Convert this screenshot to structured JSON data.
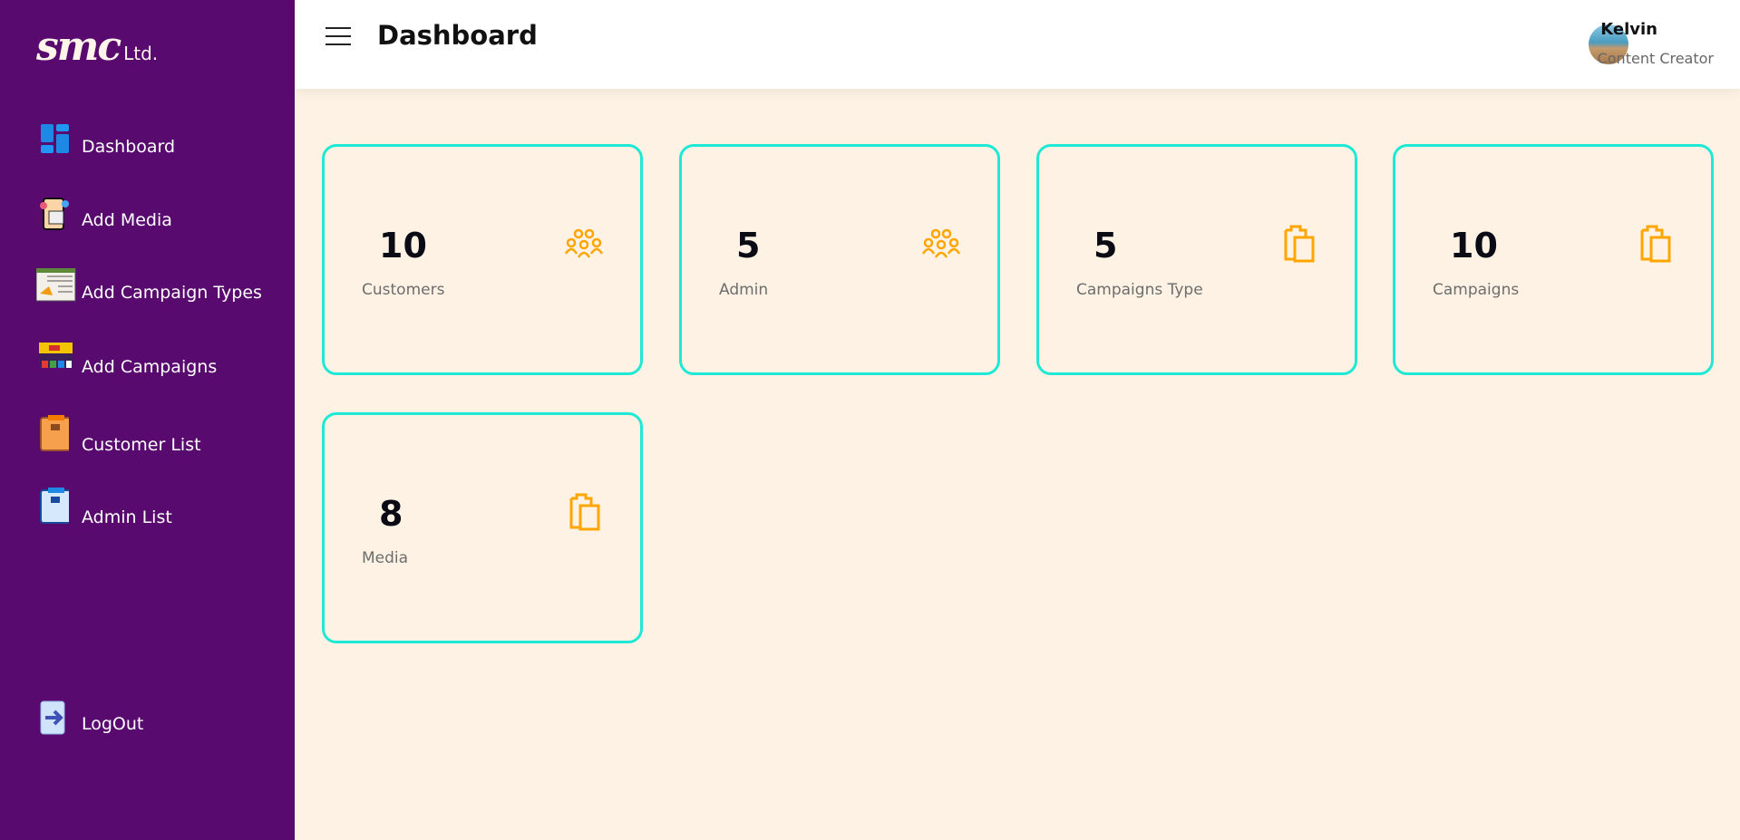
{
  "brand": {
    "logo": "smc",
    "suffix": "Ltd."
  },
  "sidebar": {
    "items": [
      {
        "label": "Dashboard",
        "icon": "dashboard-icon"
      },
      {
        "label": "Add Media",
        "icon": "media-icon"
      },
      {
        "label": "Add Campaign Types",
        "icon": "campaign-types-icon"
      },
      {
        "label": "Add Campaigns",
        "icon": "campaigns-icon"
      },
      {
        "label": "Customer List",
        "icon": "customer-list-icon"
      },
      {
        "label": "Admin List",
        "icon": "admin-list-icon"
      }
    ],
    "logout": "LogOut"
  },
  "header": {
    "title": "Dashboard",
    "user": {
      "name": "Kelvin",
      "role": "Content Creator"
    }
  },
  "cards": [
    {
      "value": "10",
      "label": "Customers",
      "icon": "users-icon"
    },
    {
      "value": "5",
      "label": "Admin",
      "icon": "users-icon"
    },
    {
      "value": "5",
      "label": "Campaigns Type",
      "icon": "clipboard-icon"
    },
    {
      "value": "10",
      "label": "Campaigns",
      "icon": "clipboard-icon"
    },
    {
      "value": "8",
      "label": "Media",
      "icon": "clipboard-icon"
    }
  ],
  "colors": {
    "sidebar": "#590a6f",
    "card_border": "#1de9d4",
    "icon": "#ffa500",
    "background": "#fdf2e4"
  }
}
